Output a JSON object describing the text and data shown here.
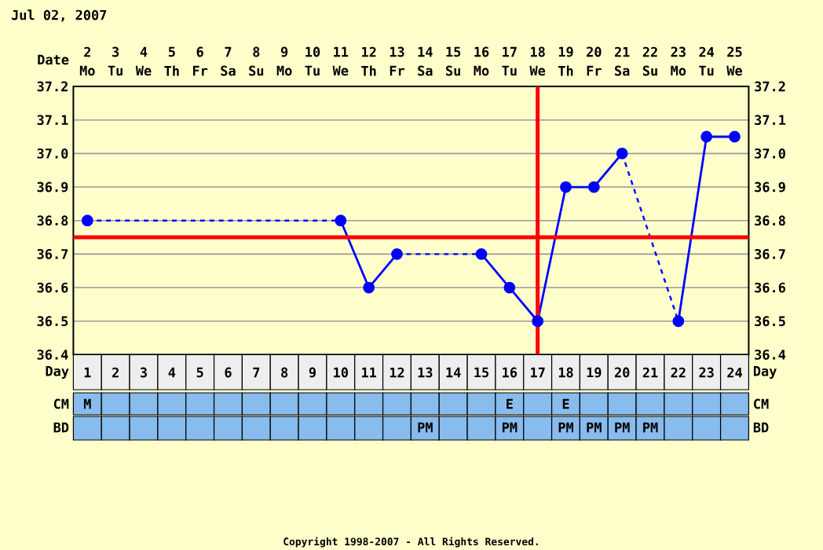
{
  "chart_data": {
    "type": "line",
    "title": "Jul 02, 2007",
    "categories": [
      "1",
      "2",
      "3",
      "4",
      "5",
      "6",
      "7",
      "8",
      "9",
      "10",
      "11",
      "12",
      "13",
      "14",
      "15",
      "16",
      "17",
      "18",
      "19",
      "20",
      "21",
      "22",
      "23",
      "24"
    ],
    "series": [
      {
        "color": "#0000ff",
        "values": [
          36.8,
          null,
          null,
          null,
          null,
          null,
          null,
          null,
          null,
          36.8,
          36.6,
          36.7,
          null,
          null,
          36.7,
          36.6,
          36.5,
          36.9,
          36.9,
          37.0,
          null,
          36.5,
          37.05,
          37.05
        ]
      }
    ],
    "ylim": [
      36.4,
      37.2
    ],
    "yticks": [
      36.4,
      36.5,
      36.6,
      36.7,
      36.8,
      36.9,
      {
        "value": 37.0,
        "label": "37.0"
      },
      37.1,
      37.2
    ],
    "y2lim": [
      36.4,
      37.2
    ],
    "y2ticks": [
      36.4,
      36.5,
      36.6,
      36.7,
      36.8,
      36.9,
      {
        "value": 37.0,
        "label": "37.0"
      },
      37.1,
      37.2
    ],
    "ref_lines": [
      {
        "axis": "y",
        "value": 36.75,
        "color": "#ff0000"
      },
      {
        "axis": "x",
        "value": "17",
        "color": "#ff0000"
      }
    ],
    "grid": true,
    "marker": "circle",
    "line_style": "solid",
    "annotations": [
      "Date",
      "Day",
      "CM",
      "BD",
      "Copyright 1998-2007 - All Rights Reserved.",
      "2",
      "3",
      "4",
      "5",
      "6",
      "7",
      "8",
      "9",
      "10",
      "11",
      "12",
      "13",
      "14",
      "15",
      "16",
      "17",
      "18",
      "19",
      "20",
      "21",
      "22",
      "23",
      "24",
      "25",
      "Mo",
      "Tu",
      "We",
      "Th",
      "Fr",
      "Sa",
      "Su",
      "Mo",
      "Tu",
      "We",
      "Th",
      "Fr",
      "Sa",
      "Su",
      "Mo",
      "Tu",
      "We",
      "Th",
      "Fr",
      "Sa",
      "Su",
      "Mo",
      "Tu",
      "We",
      "M",
      null,
      null,
      null,
      null,
      null,
      null,
      null,
      null,
      null,
      null,
      null,
      null,
      null,
      null,
      "E",
      null,
      "E",
      null,
      null,
      null,
      null,
      null,
      null,
      null,
      null,
      null,
      null,
      null,
      null,
      null,
      null,
      null,
      null,
      null,
      null,
      "PM",
      null,
      null,
      "PM",
      null,
      "PM",
      "PM",
      "PM",
      "PM",
      null,
      null,
      null
    ]
  }
}
